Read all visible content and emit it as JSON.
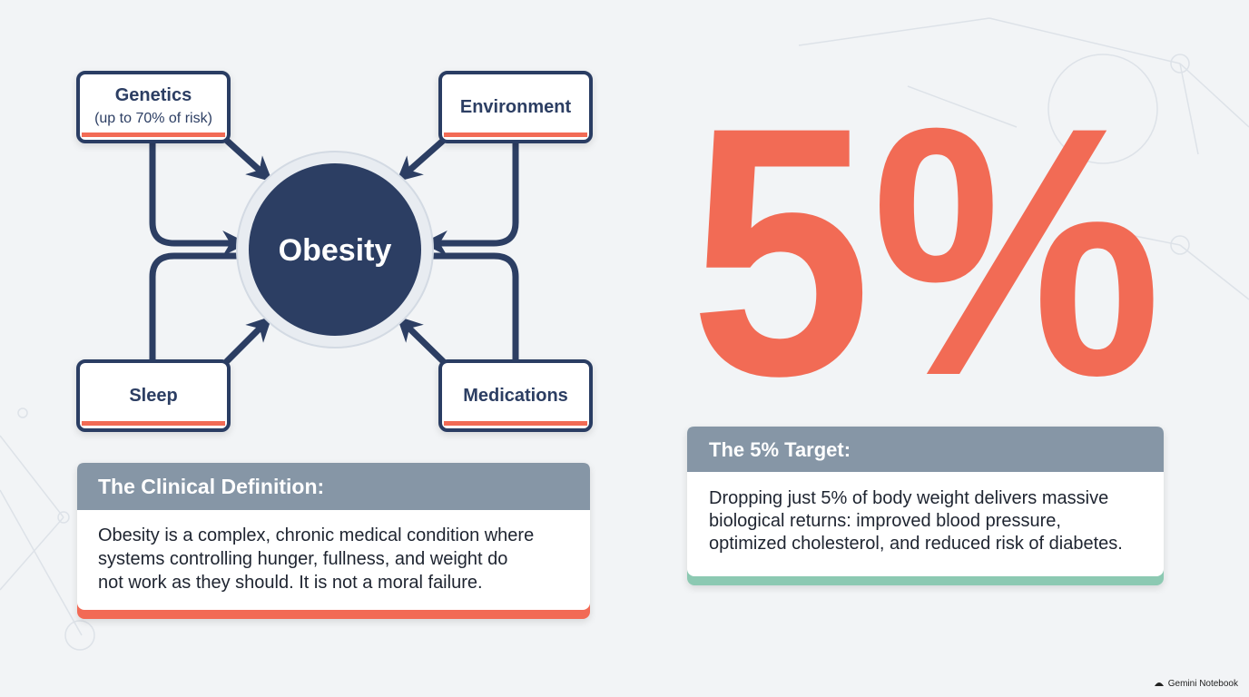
{
  "diagram": {
    "center": "Obesity",
    "nodes": [
      {
        "label": "Genetics",
        "sublabel": "(up to 70% of risk)"
      },
      {
        "label": "Environment"
      },
      {
        "label": "Sleep"
      },
      {
        "label": "Medications"
      }
    ]
  },
  "definition_card": {
    "title": "The Clinical Definition:",
    "body": [
      "Obesity is a complex, chronic medical condition where",
      "systems controlling hunger, fullness, and weight do",
      "not work as they should. It is not a moral failure."
    ]
  },
  "big_stat": "5%",
  "target_card": {
    "title": "The 5% Target:",
    "body": [
      "Dropping just 5% of body weight delivers massive",
      "biological returns: improved blood pressure,",
      "optimized cholesterol, and reduced risk of diabetes."
    ]
  },
  "footer": "Gemini Notebook"
}
